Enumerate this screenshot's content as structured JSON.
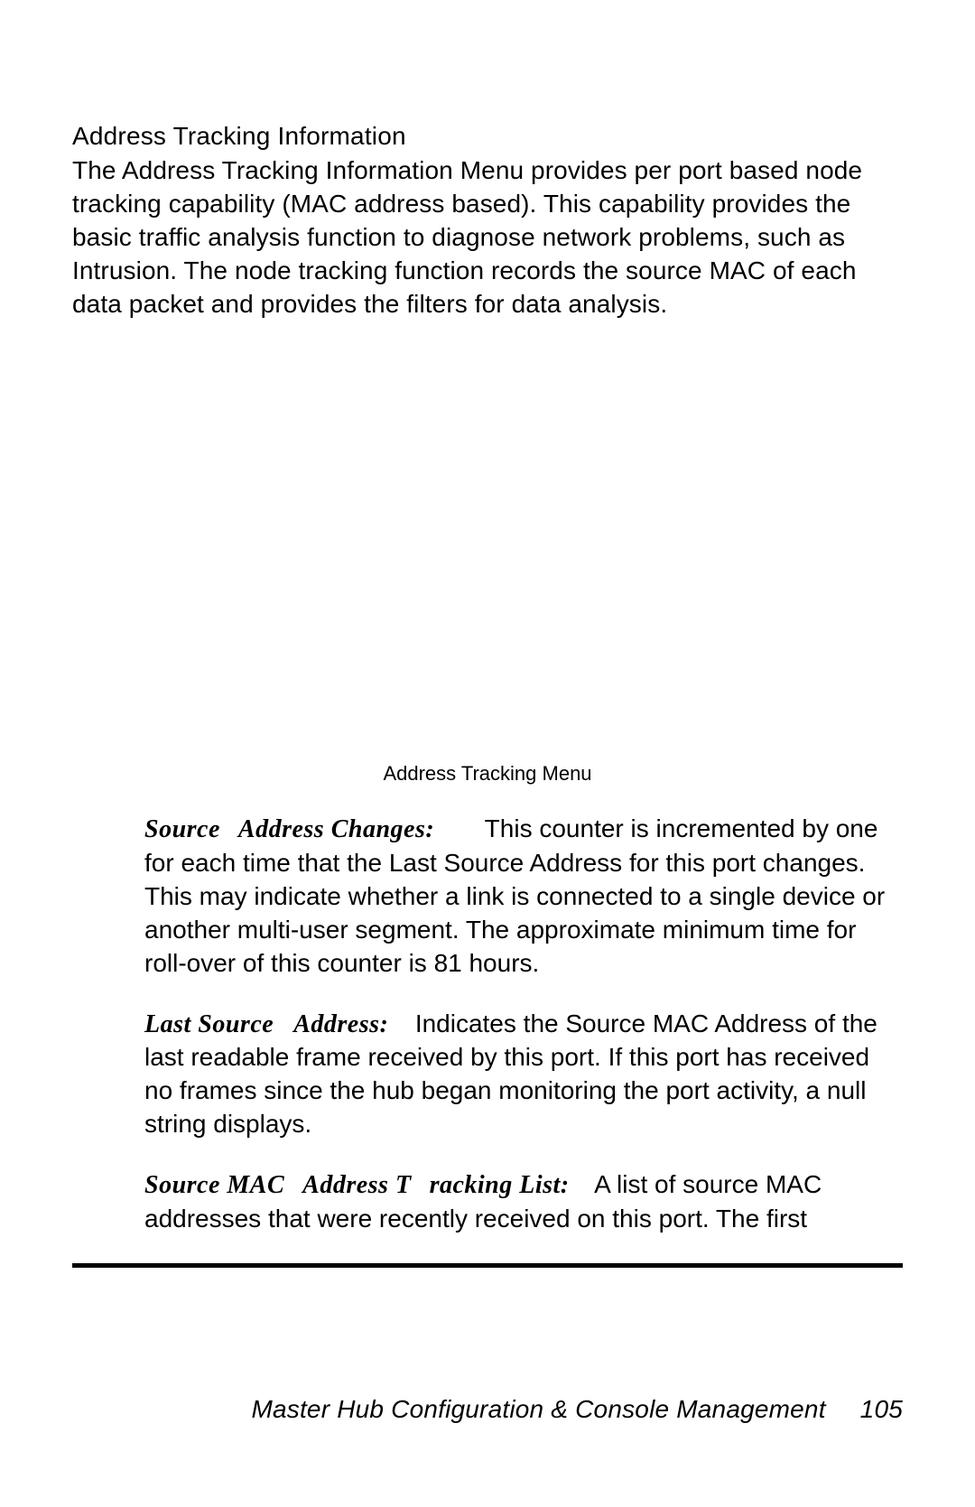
{
  "colors": {
    "background": "#ffffff",
    "text": "#000000",
    "rule": "#000000"
  },
  "typography": {
    "body_font": "Arial",
    "body_size_pt": 21,
    "term_font": "Times New Roman",
    "term_style": "bold italic",
    "caption_size_pt": 16,
    "footer_style": "italic"
  },
  "section": {
    "heading": "Address Tracking Information",
    "intro": "The Address Tracking Information Menu provides per port based node tracking capability (MAC address based). This capability provides the basic traffic analysis function to diagnose network problems, such as Intrusion. The node tracking function records the source MAC of each data packet and provides the filters for data analysis."
  },
  "figure": {
    "caption": "Address Tracking Menu"
  },
  "definitions": [
    {
      "term_parts": [
        "Source",
        "Address Changes:"
      ],
      "term_gaps": [
        "md",
        "lg"
      ],
      "body": "This counter is incremented by one for each time that the Last Source Address for this port changes. This may indicate whether a link is connected to a single device or another multi-user segment. The approximate minimum time for roll-over of this counter is 81 hours."
    },
    {
      "term_parts": [
        "Last Source",
        "Address:"
      ],
      "term_gaps": [
        "xl",
        "xl"
      ],
      "body": "Indicates the Source MAC Address of the last readable frame received by this port. If this port has received no frames since the hub began monitoring the port activity, a null string displays."
    },
    {
      "term_parts": [
        "Source MAC",
        "Address T",
        "racking List:"
      ],
      "term_gaps": [
        "md",
        "md",
        "md"
      ],
      "body": "A list of source MAC addresses that were recently received on this port. The first"
    }
  ],
  "footer": {
    "title": "Master Hub Configuration & Console Management",
    "page_number": "105"
  }
}
